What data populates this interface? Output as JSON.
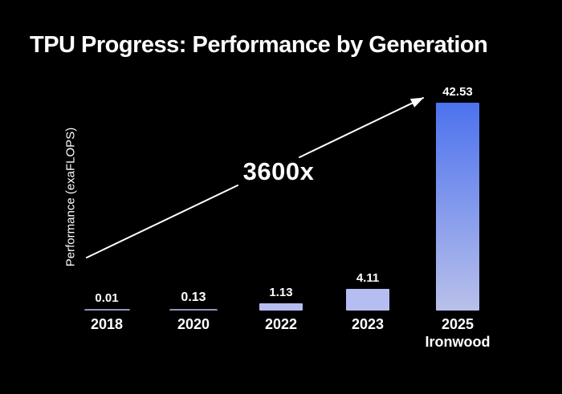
{
  "title": "TPU Progress: Performance by Generation",
  "ylabel": "Performance (exaFLOPS)",
  "annotation": "3600x",
  "colors": {
    "background": "#000000",
    "text": "#ffffff",
    "arrow": "#ffffff",
    "bar_tiny": "#8f94b8",
    "bar_light": "#b6bdf1",
    "bar_gradient_top": "#4c72ee",
    "bar_gradient_bottom": "#b9c0ea"
  },
  "chart_data": {
    "type": "bar",
    "title": "TPU Progress: Performance by Generation",
    "xlabel": "",
    "ylabel": "Performance (exaFLOPS)",
    "categories": [
      "2018",
      "2020",
      "2022",
      "2023",
      "2025"
    ],
    "sublabels": [
      "",
      "",
      "",
      "",
      "Ironwood"
    ],
    "values": [
      0.01,
      0.13,
      1.13,
      4.11,
      42.53
    ],
    "value_labels": [
      "0.01",
      "0.13",
      "1.13",
      "4.11",
      "42.53"
    ],
    "annotation": "3600x",
    "ylim": [
      0,
      45
    ],
    "grid": false,
    "legend": false,
    "background": "black"
  }
}
